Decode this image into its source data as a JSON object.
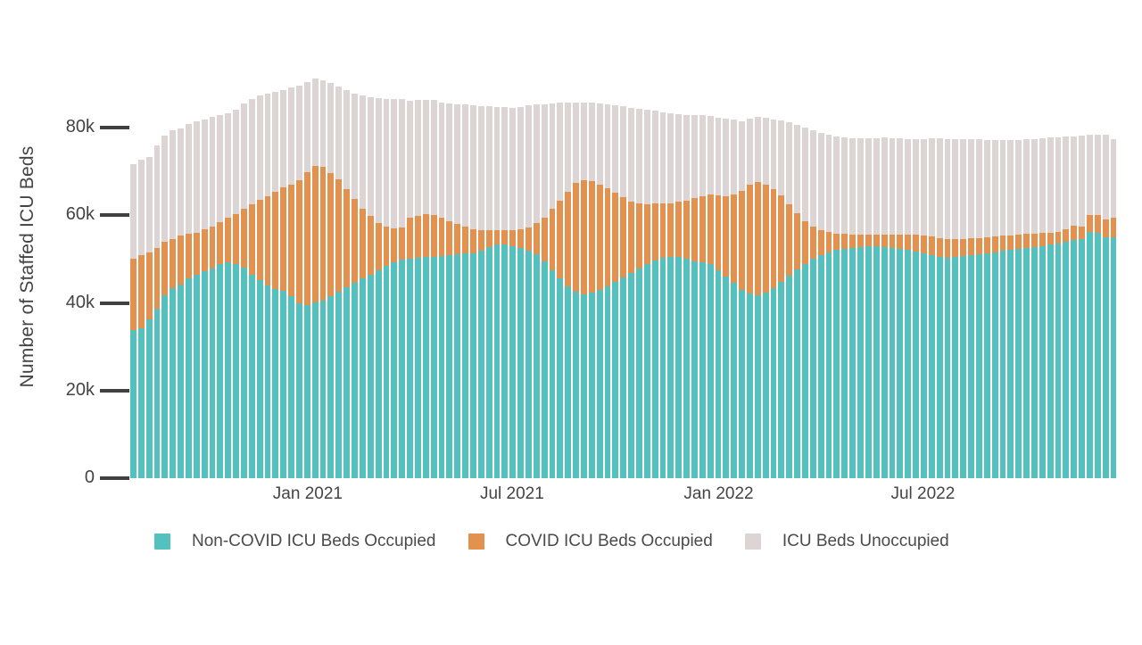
{
  "figure": {
    "y_axis_title": "Number of Staffed ICU Beds",
    "background_color": "#ffffff",
    "axis_text_color": "#444444",
    "tick_mark_color": "#404040"
  },
  "legend": {
    "items": [
      {
        "label": "Non-COVID ICU Beds Occupied",
        "color": "#55C1BE"
      },
      {
        "label": "COVID ICU Beds Occupied",
        "color": "#E3914E"
      },
      {
        "label": "ICU Beds Unoccupied",
        "color": "#DCD5D4"
      }
    ]
  },
  "chart_data": {
    "type": "bar",
    "stacked": true,
    "title": "",
    "xlabel": "",
    "ylabel": "Number of Staffed ICU Beds",
    "ylim": [
      0,
      92800
    ],
    "grid": false,
    "legend_position": "bottom",
    "x_unit": "week",
    "x_range_approx": [
      "Aug 2020",
      "Dec 2022"
    ],
    "n_bars": 125,
    "y_ticks": [
      {
        "label": "0",
        "value": 0
      },
      {
        "label": "20k",
        "value": 20000
      },
      {
        "label": "40k",
        "value": 40000
      },
      {
        "label": "60k",
        "value": 60000
      },
      {
        "label": "80k",
        "value": 80000
      }
    ],
    "x_ticks": [
      {
        "label": "Jan 2021",
        "week_index": 22.0
      },
      {
        "label": "Jul 2021",
        "week_index": 47.9
      },
      {
        "label": "Jan 2022",
        "week_index": 74.1
      },
      {
        "label": "Jul 2022",
        "week_index": 100.0
      }
    ],
    "series": [
      {
        "name": "Non-COVID ICU Beds Occupied",
        "color": "#55C1BE",
        "values": [
          33800,
          34300,
          36300,
          38700,
          41700,
          43400,
          44100,
          45500,
          46500,
          47200,
          47900,
          48900,
          49200,
          48900,
          48000,
          46500,
          45200,
          44000,
          43200,
          42800,
          41500,
          39900,
          39400,
          40100,
          40500,
          41500,
          42500,
          43500,
          44500,
          45500,
          46500,
          47500,
          48500,
          49300,
          49800,
          50000,
          50200,
          50400,
          50500,
          50700,
          50900,
          51100,
          51200,
          51300,
          51900,
          52800,
          53400,
          53300,
          53000,
          52600,
          52000,
          51000,
          49500,
          47500,
          45500,
          43800,
          42500,
          42000,
          42300,
          43000,
          43800,
          44800,
          45800,
          46800,
          47800,
          48800,
          49600,
          50200,
          50500,
          50400,
          50000,
          49500,
          49300,
          48800,
          47500,
          46000,
          44500,
          43000,
          42100,
          41800,
          42300,
          43400,
          44800,
          46200,
          47600,
          48900,
          50000,
          50900,
          51600,
          52100,
          52400,
          52600,
          52800,
          52900,
          52900,
          52800,
          52600,
          52400,
          52100,
          51800,
          51300,
          50800,
          50400,
          50300,
          50400,
          50600,
          50800,
          51100,
          51400,
          51600,
          51900,
          52100,
          52300,
          52500,
          52700,
          52900,
          53300,
          53600,
          54000,
          54300,
          54600,
          56200,
          56000,
          55000,
          55000
        ]
      },
      {
        "name": "COVID ICU Beds Occupied",
        "color": "#E3914E",
        "values": [
          16200,
          16600,
          15300,
          13900,
          12300,
          11200,
          11200,
          10200,
          9500,
          9500,
          9500,
          9500,
          10200,
          11400,
          13500,
          16000,
          18300,
          20300,
          22100,
          23500,
          25500,
          28100,
          30400,
          31200,
          30500,
          28200,
          25700,
          22500,
          19300,
          16000,
          13300,
          10800,
          9000,
          7700,
          7500,
          9400,
          9700,
          9900,
          9500,
          8800,
          7800,
          7000,
          6300,
          5600,
          4700,
          3800,
          3200,
          3300,
          3600,
          4200,
          5300,
          7200,
          9900,
          13900,
          17900,
          21600,
          24900,
          25900,
          25500,
          24000,
          22300,
          20300,
          18300,
          16400,
          15000,
          13800,
          13000,
          12500,
          12300,
          12700,
          13400,
          14400,
          15100,
          15900,
          17000,
          18300,
          20300,
          22500,
          24800,
          25700,
          24700,
          22600,
          19700,
          16300,
          12900,
          9800,
          7400,
          5700,
          4500,
          3700,
          3300,
          3000,
          2700,
          2600,
          2600,
          2800,
          3000,
          3200,
          3500,
          3800,
          4100,
          4300,
          4300,
          4200,
          4100,
          4000,
          3900,
          3700,
          3600,
          3500,
          3400,
          3300,
          3300,
          3200,
          3100,
          3000,
          2700,
          2600,
          2700,
          3400,
          2900,
          3900,
          4100,
          4000,
          4400
        ]
      },
      {
        "name": "ICU Beds Unoccupied",
        "color": "#DCD5D4",
        "values": [
          21700,
          21800,
          21700,
          23400,
          24100,
          24800,
          24500,
          25100,
          25500,
          25100,
          25100,
          24400,
          23900,
          23700,
          24000,
          24000,
          23800,
          23500,
          22900,
          22300,
          22200,
          21600,
          20500,
          19900,
          19800,
          20500,
          21100,
          22500,
          24000,
          25800,
          27200,
          28500,
          29100,
          29500,
          29300,
          26800,
          26500,
          26100,
          26300,
          26300,
          26800,
          27200,
          27700,
          28100,
          28300,
          28200,
          28100,
          28000,
          27900,
          27900,
          27700,
          27000,
          26000,
          24200,
          22300,
          20400,
          18400,
          17900,
          17900,
          18500,
          19200,
          19900,
          20700,
          21300,
          21400,
          21400,
          21200,
          20800,
          20400,
          19900,
          19500,
          18900,
          18400,
          17900,
          17800,
          17700,
          17000,
          16000,
          15200,
          14900,
          15300,
          15900,
          17100,
          18700,
          20200,
          21400,
          22000,
          22200,
          22200,
          22100,
          22000,
          22000,
          22100,
          22000,
          22000,
          22100,
          21900,
          21900,
          21800,
          21800,
          22000,
          22400,
          22800,
          22900,
          22900,
          22700,
          22600,
          22500,
          22200,
          22100,
          21900,
          21700,
          21600,
          21600,
          21600,
          21600,
          21700,
          21600,
          21200,
          20300,
          20600,
          18300,
          18300,
          19300,
          18000
        ]
      }
    ]
  }
}
